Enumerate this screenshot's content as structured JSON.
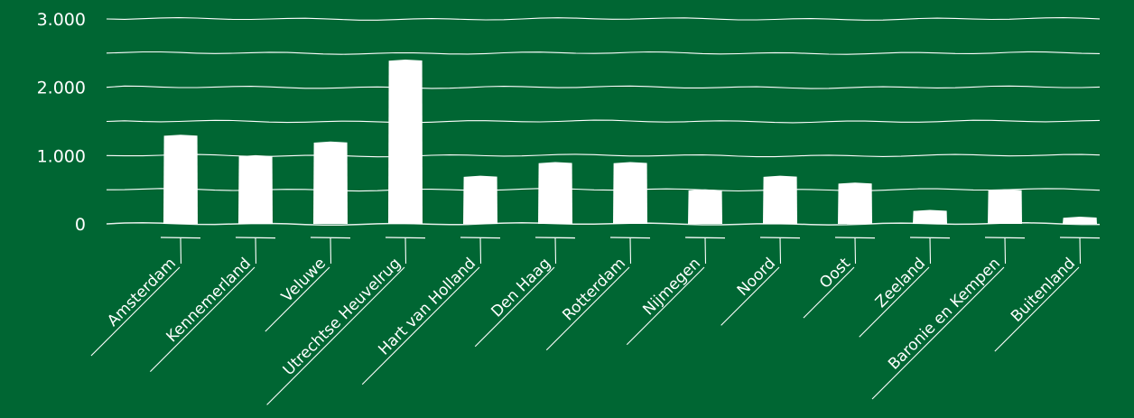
{
  "chart_data": {
    "type": "bar",
    "categories": [
      "Amsterdam",
      "Kennemerland",
      "Veluwe",
      "Utrechtse Heuvelrug",
      "Hart van Holland",
      "Den Haag",
      "Rotterdam",
      "Nijmegen",
      "Noord",
      "Oost",
      "Zeeland",
      "Baronie en Kempen",
      "Buitenland"
    ],
    "values": [
      1300,
      1000,
      1200,
      2400,
      700,
      900,
      900,
      500,
      700,
      600,
      200,
      500,
      100
    ],
    "ylim": [
      0,
      3000
    ],
    "yticks": [
      0,
      1000,
      2000,
      3000
    ],
    "ytick_labels": [
      "0",
      "1.000",
      "2.000",
      "3.000"
    ],
    "grid": true,
    "legend": "none",
    "colors": {
      "background": "#006633",
      "bars": "#ffffff",
      "text": "#ffffff"
    }
  }
}
